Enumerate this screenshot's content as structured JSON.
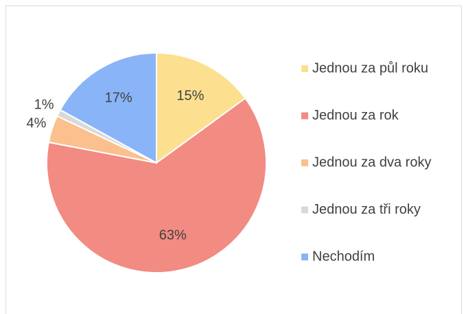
{
  "chart_data": {
    "type": "pie",
    "categories": [
      "Jednou za půl roku",
      "Jednou za rok",
      "Jednou za dva roky",
      "Jednou za tři roky",
      "Nechodím"
    ],
    "values": [
      15,
      63,
      4,
      1,
      17
    ],
    "value_labels": [
      "15%",
      "63%",
      "4%",
      "1%",
      "17%"
    ],
    "colors": [
      "#fce08f",
      "#f28b82",
      "#fbc08e",
      "#d9d9d9",
      "#8ab4f8"
    ],
    "legend": "right"
  }
}
